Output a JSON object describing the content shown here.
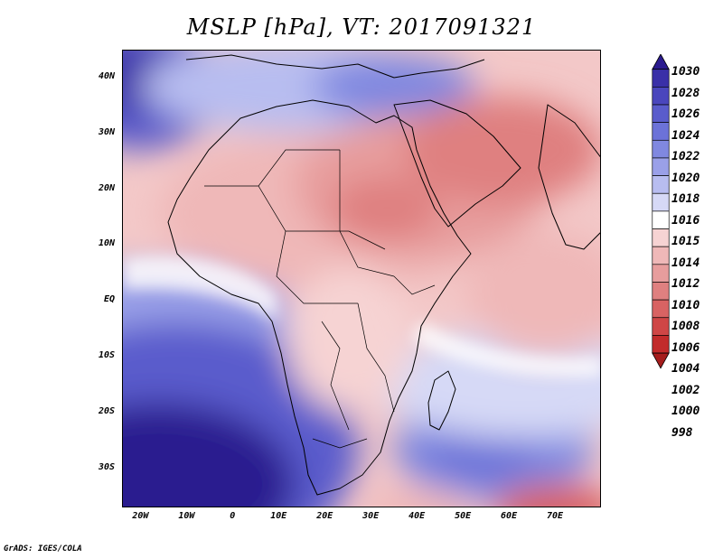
{
  "title": "MSLP [hPa], VT: 2017091321",
  "footer": "GrADS: IGES/COLA",
  "map": {
    "projection": "lat-lon",
    "lon_range": [
      -24,
      80
    ],
    "lat_range": [
      -37,
      45
    ],
    "lat_ticks": [
      {
        "value": 40,
        "label": "40N"
      },
      {
        "value": 30,
        "label": "30N"
      },
      {
        "value": 20,
        "label": "20N"
      },
      {
        "value": 10,
        "label": "10N"
      },
      {
        "value": 0,
        "label": "EQ"
      },
      {
        "value": -10,
        "label": "10S"
      },
      {
        "value": -20,
        "label": "20S"
      },
      {
        "value": -30,
        "label": "30S"
      }
    ],
    "lon_ticks": [
      {
        "value": -20,
        "label": "20W"
      },
      {
        "value": -10,
        "label": "10W"
      },
      {
        "value": 0,
        "label": "0"
      },
      {
        "value": 10,
        "label": "10E"
      },
      {
        "value": 20,
        "label": "20E"
      },
      {
        "value": 30,
        "label": "30E"
      },
      {
        "value": 40,
        "label": "40E"
      },
      {
        "value": 50,
        "label": "50E"
      },
      {
        "value": 60,
        "label": "60E"
      },
      {
        "value": 70,
        "label": "70E"
      }
    ]
  },
  "colorbar": {
    "levels": [
      "1030",
      "1028",
      "1026",
      "1024",
      "1022",
      "1020",
      "1018",
      "1016",
      "1015",
      "1014",
      "1012",
      "1010",
      "1008",
      "1006",
      "1004",
      "1002",
      "1000",
      "998"
    ],
    "colors": [
      "#2b1b8f",
      "#3a30a8",
      "#4a46bd",
      "#5a5ccc",
      "#6c72d8",
      "#8088e0",
      "#9aa0e8",
      "#b8bdf0",
      "#d6d9f6",
      "#ffffff",
      "#f6d3d3",
      "#efb8b8",
      "#e79d9d",
      "#df8080",
      "#d86363",
      "#cf4646",
      "#c22b2b",
      "#a51d1d"
    ]
  }
}
